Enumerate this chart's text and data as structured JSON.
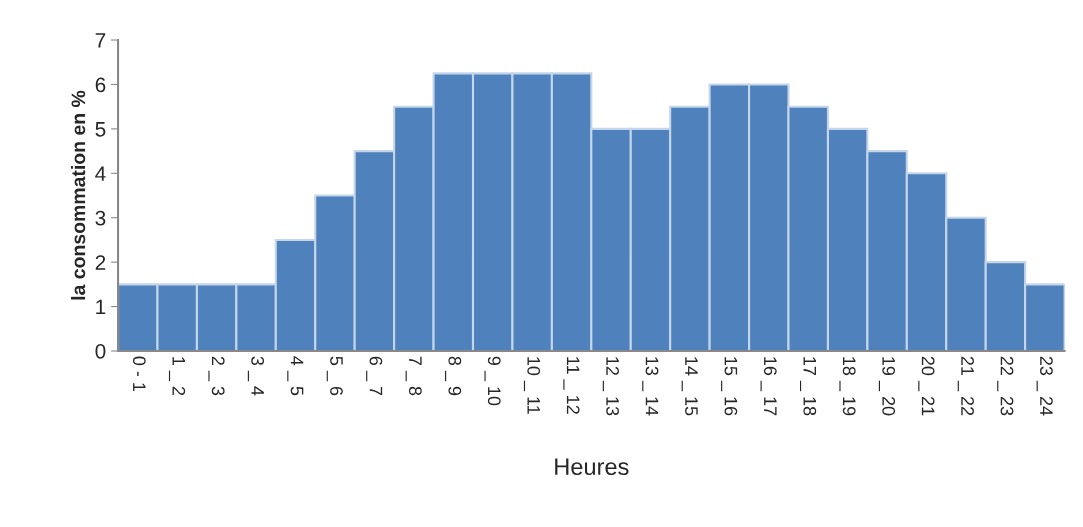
{
  "chart_data": {
    "type": "bar",
    "xlabel": "Heures",
    "ylabel": "la consommation en %",
    "categories": [
      "0 - 1",
      "1 _ 2",
      "2 _ 3",
      "3 _ 4",
      "4 _ 5",
      "5 _ 6",
      "6 _ 7",
      "7 _ 8",
      "8 _ 9",
      "9 _ 10",
      "10 _ 11",
      "11 _ 12",
      "12 _ 13",
      "13 _ 14",
      "14 _ 15",
      "15 _ 16",
      "16 _ 17",
      "17 _ 18",
      "18 _ 19",
      "19 _ 20",
      "20 _ 21",
      "21 _ 22",
      "22 _ 23",
      "23 _ 24"
    ],
    "values": [
      1.5,
      1.5,
      1.5,
      1.5,
      2.5,
      3.5,
      4.5,
      5.5,
      6.25,
      6.25,
      6.25,
      6.25,
      5,
      5,
      5.5,
      6,
      6,
      5.5,
      5,
      4.5,
      4,
      3,
      2,
      1.5
    ],
    "color": "#4f81bd",
    "ylim": [
      0,
      7
    ],
    "yticks": [
      0,
      1,
      2,
      3,
      4,
      5,
      6,
      7
    ],
    "grid": false,
    "legend": false
  }
}
